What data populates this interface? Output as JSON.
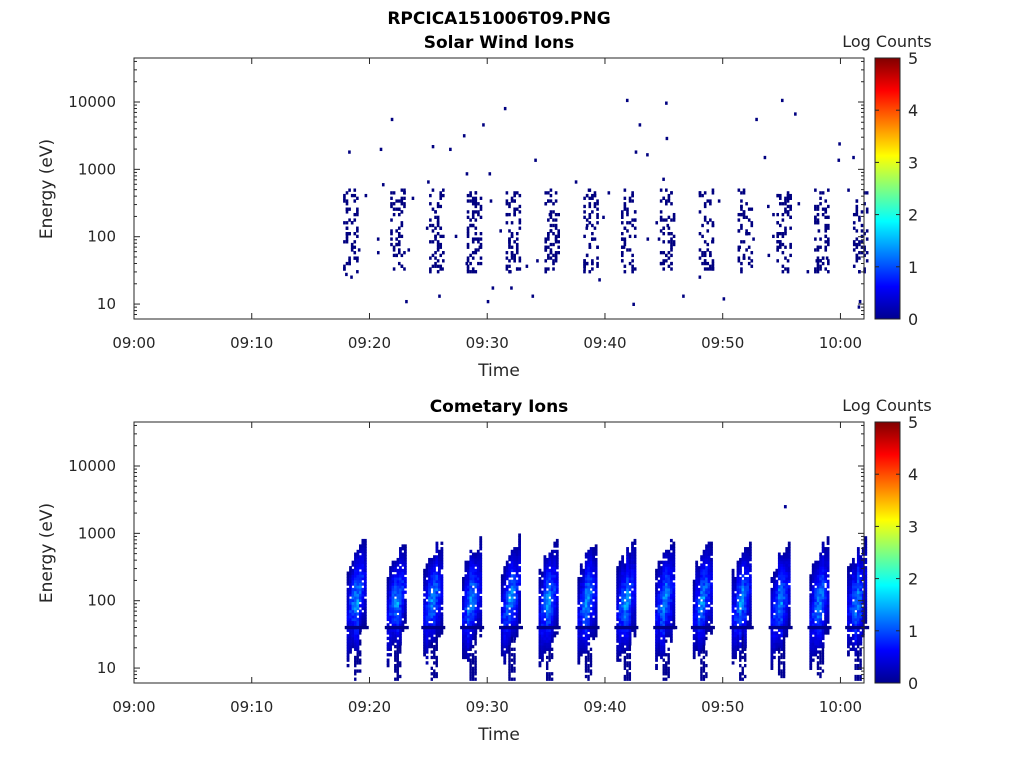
{
  "figure_title": "RPCICA151006T09.PNG",
  "colorbar": {
    "label": "Log Counts",
    "ticks": [
      "0",
      "1",
      "2",
      "3",
      "4",
      "5"
    ],
    "min": 0,
    "max": 5,
    "colormap": "jet"
  },
  "chart_data": [
    {
      "type": "heatmap",
      "title": "Solar Wind Ions",
      "xlabel": "Time",
      "ylabel": "Energy (eV)",
      "x_ticks": [
        "09:00",
        "09:10",
        "09:20",
        "09:30",
        "09:40",
        "09:50",
        "10:00"
      ],
      "x_range_minutes": [
        0,
        62
      ],
      "y_ticks": [
        "10",
        "100",
        "1000",
        "10000"
      ],
      "y_scale": "log",
      "ylim": [
        6,
        45000
      ],
      "data_onset_minutes": 17.5,
      "scan_times_minutes": [
        18.2,
        22.2,
        25.5,
        28.7,
        32.0,
        35.3,
        38.6,
        41.8,
        45.1,
        48.4,
        51.7,
        55.0,
        58.2,
        61.5
      ],
      "typical_energy_range_eV": [
        30,
        500
      ],
      "typical_log_counts": 0.0,
      "notes": "sparse single-count pixels; scattered points up to ~10000 eV"
    },
    {
      "type": "heatmap",
      "title": "Cometary Ions",
      "xlabel": "Time",
      "ylabel": "Energy (eV)",
      "x_ticks": [
        "09:00",
        "09:10",
        "09:20",
        "09:30",
        "09:40",
        "09:50",
        "10:00"
      ],
      "x_range_minutes": [
        0,
        62
      ],
      "y_ticks": [
        "10",
        "100",
        "1000",
        "10000"
      ],
      "y_scale": "log",
      "ylim": [
        6,
        45000
      ],
      "data_onset_minutes": 17.5,
      "scan_times_minutes": [
        18.9,
        22.3,
        25.4,
        28.7,
        32.0,
        35.2,
        38.5,
        41.8,
        45.1,
        48.3,
        51.6,
        54.9,
        58.2,
        61.4
      ],
      "typical_energy_range_eV": [
        8,
        700
      ],
      "peak_log_counts": 1.8,
      "isolated_point": {
        "time_minutes": 55.2,
        "energy_eV": 2500,
        "log_counts": 0.1
      }
    }
  ]
}
